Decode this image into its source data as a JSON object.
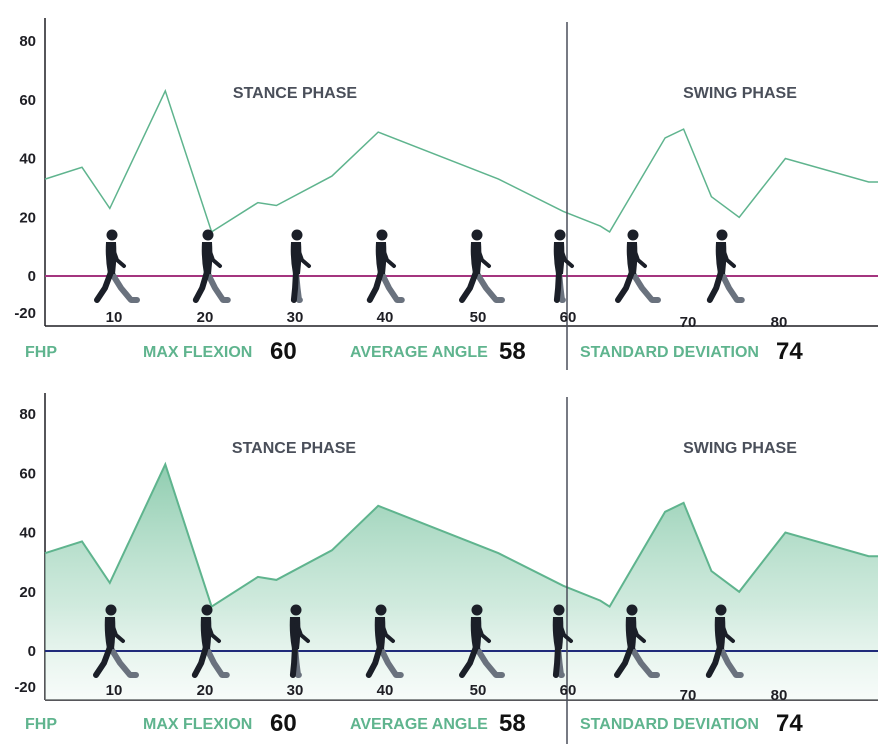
{
  "chart_data": [
    {
      "type": "line",
      "panel": "top",
      "annotations": {
        "stance": "STANCE PHASE",
        "swing": "SWING PHASE"
      },
      "y_ticks": [
        "80",
        "60",
        "40",
        "20",
        "0",
        "-20"
      ],
      "x_ticks": [
        "10",
        "20",
        "30",
        "40",
        "50",
        "60",
        "70",
        "80"
      ],
      "ylim": [
        -20,
        80
      ],
      "xlim": [
        0,
        90
      ],
      "phase_divider_x": 60,
      "series": [
        {
          "x": [
            0,
            4,
            7,
            13,
            18,
            23,
            25,
            31,
            36,
            49,
            56,
            60,
            61,
            67,
            69,
            72,
            75,
            80,
            89,
            90
          ],
          "y": [
            33,
            37,
            23,
            63,
            15,
            25,
            24,
            34,
            49,
            33,
            22,
            17,
            15,
            47,
            50,
            27,
            20,
            40,
            32,
            32
          ]
        }
      ],
      "line_color": "#5fb48e",
      "zero_line_color": "#a4357f",
      "filled": false,
      "metrics": {
        "fhp": "FHP",
        "max_flexion_label": "MAX FLEXION",
        "max_flexion_value": "60",
        "average_angle_label": "AVERAGE ANGLE",
        "average_angle_value": "58",
        "std_label": "STANDARD DEVIATION",
        "std_value": "74"
      }
    },
    {
      "type": "area",
      "panel": "bottom",
      "annotations": {
        "stance": "STANCE PHASE",
        "swing": "SWING PHASE"
      },
      "y_ticks": [
        "80",
        "60",
        "40",
        "20",
        "0",
        "-20"
      ],
      "x_ticks": [
        "10",
        "20",
        "30",
        "40",
        "50",
        "60",
        "70",
        "80"
      ],
      "ylim": [
        -20,
        80
      ],
      "xlim": [
        0,
        90
      ],
      "phase_divider_x": 60,
      "series": [
        {
          "x": [
            0,
            4,
            7,
            13,
            18,
            23,
            25,
            31,
            36,
            49,
            56,
            60,
            61,
            67,
            69,
            72,
            75,
            80,
            89,
            90
          ],
          "y": [
            33,
            37,
            23,
            63,
            15,
            25,
            24,
            34,
            49,
            33,
            22,
            17,
            15,
            47,
            50,
            27,
            20,
            40,
            32,
            32
          ]
        }
      ],
      "line_color": "#5fb48e",
      "zero_line_color": "#1f2a7a",
      "filled": true,
      "metrics": {
        "fhp": "FHP",
        "max_flexion_label": "MAX FLEXION",
        "max_flexion_value": "60",
        "average_angle_label": "AVERAGE ANGLE",
        "average_angle_value": "58",
        "std_label": "STANDARD DEVIATION",
        "std_value": "74"
      }
    }
  ],
  "colors": {
    "axis": "#1e1e24",
    "divider": "#4a4f5a",
    "silhouette_dark": "#1b1f28",
    "silhouette_light": "#6a727e",
    "fill_top": "#7cc4a2"
  },
  "icons": [
    "walking-figure-icon"
  ]
}
